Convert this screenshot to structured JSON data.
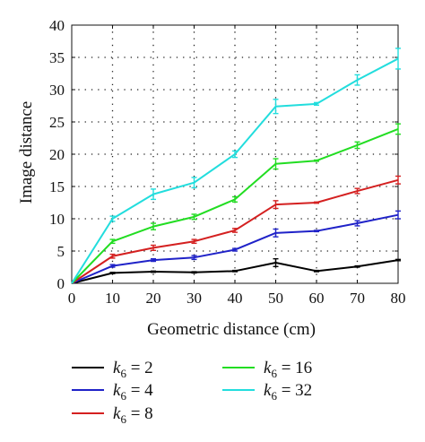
{
  "chart_data": {
    "type": "line",
    "xlabel": "Geometric distance (cm)",
    "ylabel": "Image distance",
    "xlim": [
      0,
      80
    ],
    "ylim": [
      0,
      40
    ],
    "xticks": [
      0,
      10,
      20,
      30,
      40,
      50,
      60,
      70,
      80
    ],
    "yticks": [
      0,
      5,
      10,
      15,
      20,
      25,
      30,
      35,
      40
    ],
    "grid": "dotted",
    "legend_placement": "below",
    "x": [
      0,
      10,
      20,
      30,
      40,
      50,
      60,
      70,
      80
    ],
    "series": [
      {
        "name": "k6 = 2",
        "var": "k",
        "sub": "6",
        "rest": " = 2",
        "color": "#000000",
        "values": [
          0,
          1.6,
          1.8,
          1.7,
          1.9,
          3.2,
          1.9,
          2.6,
          3.6
        ],
        "errors": [
          0,
          0.1,
          0.1,
          0.1,
          0.1,
          0.6,
          0.1,
          0.1,
          0.1
        ]
      },
      {
        "name": "k6 = 4",
        "var": "k",
        "sub": "6",
        "rest": " = 4",
        "color": "#1f22c8",
        "values": [
          0,
          2.7,
          3.6,
          4.0,
          5.2,
          7.8,
          8.1,
          9.3,
          10.6
        ],
        "errors": [
          0,
          0.2,
          0.2,
          0.3,
          0.2,
          0.6,
          0.1,
          0.4,
          0.6
        ]
      },
      {
        "name": "k6 = 8",
        "var": "k",
        "sub": "6",
        "rest": " = 8",
        "color": "#d42020",
        "values": [
          0,
          4.2,
          5.5,
          6.5,
          8.2,
          12.2,
          12.5,
          14.3,
          16.0
        ],
        "errors": [
          0,
          0.3,
          0.4,
          0.3,
          0.3,
          0.6,
          0.1,
          0.4,
          0.6
        ]
      },
      {
        "name": "k6 = 16",
        "var": "k",
        "sub": "6",
        "rest": " = 16",
        "color": "#22dd22",
        "values": [
          0,
          6.5,
          8.8,
          10.3,
          13.0,
          18.5,
          19.0,
          21.4,
          23.9
        ],
        "errors": [
          0,
          0.3,
          0.5,
          0.4,
          0.4,
          0.8,
          0.1,
          0.5,
          0.8
        ]
      },
      {
        "name": "k6 = 32",
        "var": "k",
        "sub": "6",
        "rest": " = 32",
        "color": "#22dddd",
        "values": [
          0,
          10.0,
          13.8,
          15.6,
          20.0,
          27.4,
          27.8,
          31.5,
          34.8
        ],
        "errors": [
          0,
          0.4,
          0.8,
          0.8,
          0.5,
          1.1,
          0.2,
          0.8,
          1.6
        ]
      }
    ]
  }
}
